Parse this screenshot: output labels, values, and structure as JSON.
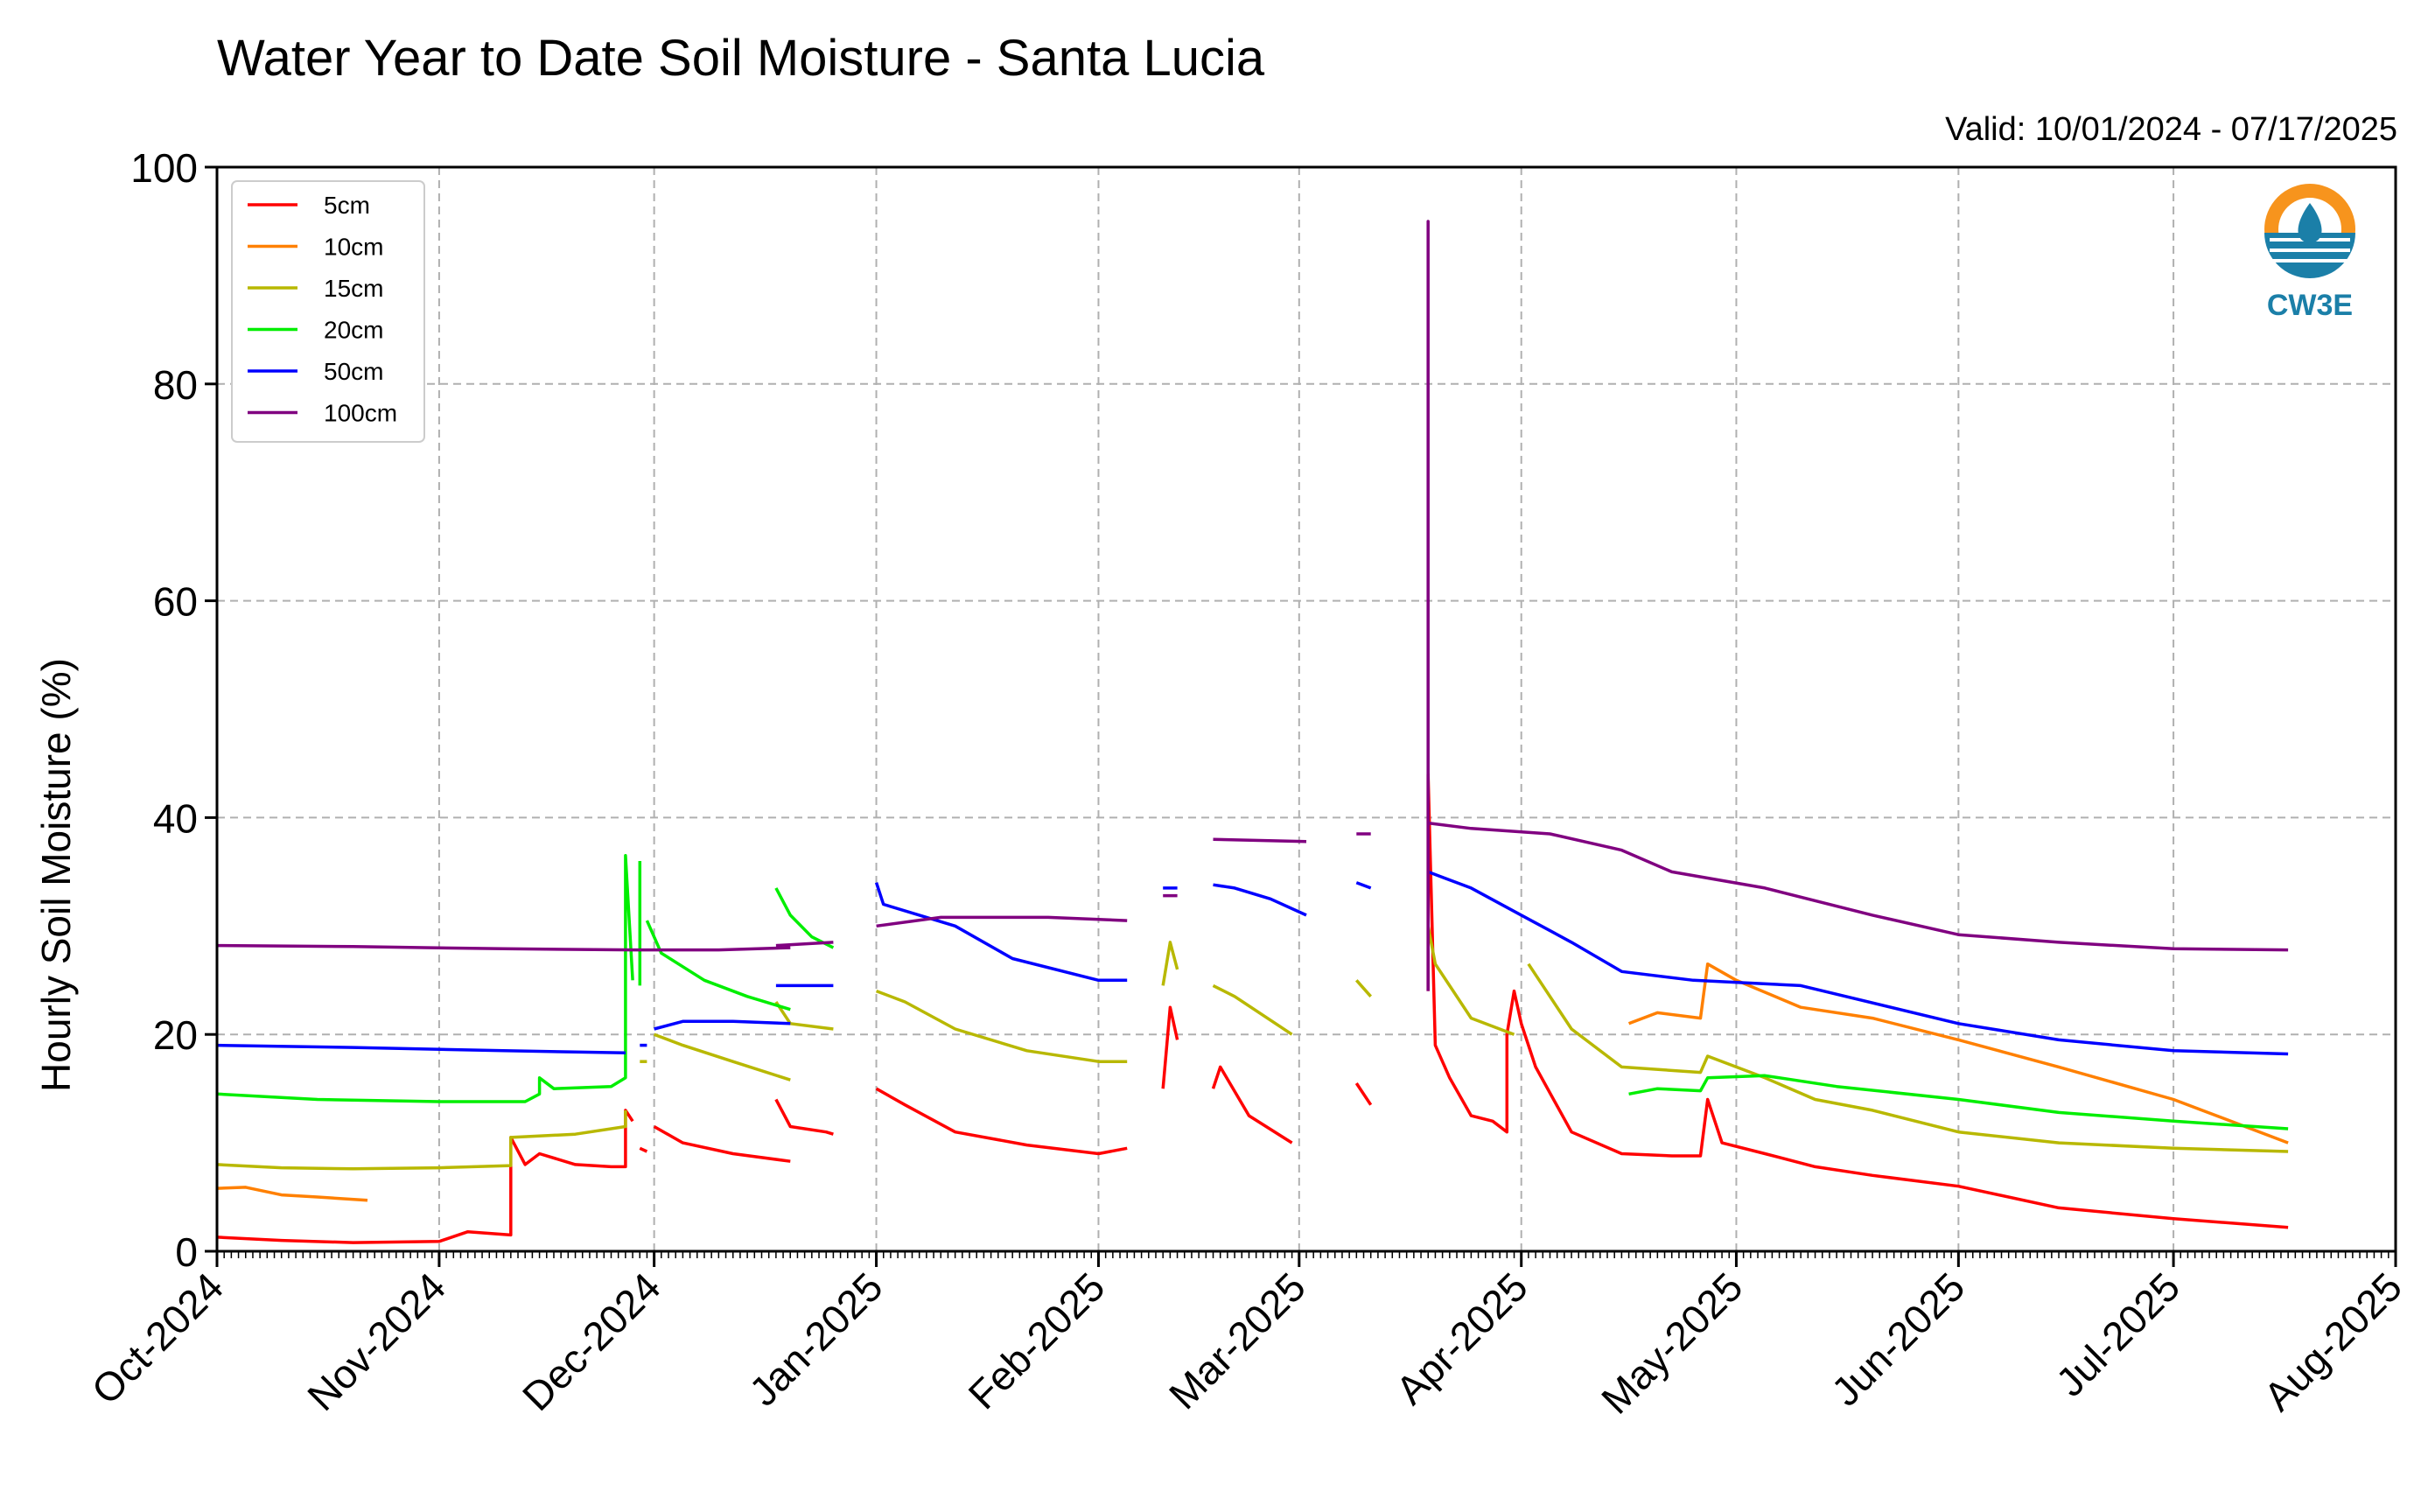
{
  "chart_data": {
    "type": "line",
    "title": "Water Year to Date Soil Moisture - Santa Lucia",
    "subtitle": "Valid: 10/01/2024 - 07/17/2025",
    "ylabel": "Hourly Soil Moisture (%)",
    "xlabel": "",
    "ylim": [
      0,
      100
    ],
    "xlim": [
      "2024-10-01",
      "2025-08-01"
    ],
    "yticks": [
      0,
      20,
      40,
      60,
      80,
      100
    ],
    "xticks": [
      "2024-10-01",
      "2024-11-01",
      "2024-12-01",
      "2025-01-01",
      "2025-02-01",
      "2025-03-01",
      "2025-04-01",
      "2025-05-01",
      "2025-06-01",
      "2025-07-01",
      "2025-08-01"
    ],
    "xtick_labels": [
      "Oct-2024",
      "Nov-2024",
      "Dec-2024",
      "Jan-2025",
      "Feb-2025",
      "Mar-2025",
      "Apr-2025",
      "May-2025",
      "Jun-2025",
      "Jul-2025",
      "Aug-2025"
    ],
    "grid": true,
    "legend_position": "top-left",
    "logo": {
      "text": "CW3E",
      "colors": [
        "#f7941d",
        "#1b7fa8"
      ]
    },
    "series": [
      {
        "name": "5cm",
        "color": "#ff0000",
        "segments": [
          [
            [
              "2024-10-01",
              1.3
            ],
            [
              "2024-10-10",
              1.0
            ],
            [
              "2024-10-20",
              0.8
            ],
            [
              "2024-11-01",
              0.9
            ],
            [
              "2024-11-05",
              1.8
            ],
            [
              "2024-11-11",
              1.5
            ],
            [
              "2024-11-11",
              10.5
            ],
            [
              "2024-11-13",
              8.0
            ],
            [
              "2024-11-15",
              9.0
            ],
            [
              "2024-11-20",
              8.0
            ],
            [
              "2024-11-25",
              7.8
            ],
            [
              "2024-11-27",
              7.8
            ],
            [
              "2024-11-27",
              13.0
            ],
            [
              "2024-11-28",
              12.0
            ]
          ],
          [
            [
              "2024-11-29",
              9.5
            ],
            [
              "2024-11-30",
              9.2
            ]
          ],
          [
            [
              "2024-12-01",
              11.5
            ],
            [
              "2024-12-05",
              10.0
            ],
            [
              "2024-12-12",
              9.0
            ],
            [
              "2024-12-20",
              8.3
            ]
          ],
          [
            [
              "2024-12-18",
              14.0
            ],
            [
              "2024-12-20",
              11.5
            ],
            [
              "2024-12-25",
              11.0
            ],
            [
              "2024-12-26",
              10.8
            ]
          ],
          [
            [
              "2025-01-01",
              15.0
            ],
            [
              "2025-01-05",
              13.5
            ],
            [
              "2025-01-12",
              11.0
            ],
            [
              "2025-01-22",
              9.8
            ],
            [
              "2025-02-01",
              9.0
            ],
            [
              "2025-02-05",
              9.5
            ]
          ],
          [
            [
              "2025-02-10",
              15.0
            ],
            [
              "2025-02-11",
              22.5
            ],
            [
              "2025-02-12",
              19.5
            ]
          ],
          [
            [
              "2025-02-17",
              15.0
            ],
            [
              "2025-02-18",
              17.0
            ],
            [
              "2025-02-22",
              12.5
            ],
            [
              "2025-02-28",
              10.0
            ]
          ],
          [
            [
              "2025-03-09",
              15.5
            ],
            [
              "2025-03-11",
              13.5
            ]
          ],
          [
            [
              "2025-03-19",
              24.0
            ],
            [
              "2025-03-19",
              44.0
            ],
            [
              "2025-03-20",
              19.0
            ],
            [
              "2025-03-22",
              16.0
            ],
            [
              "2025-03-25",
              12.5
            ],
            [
              "2025-03-28",
              12.0
            ],
            [
              "2025-03-30",
              11.0
            ],
            [
              "2025-03-30",
              20.0
            ],
            [
              "2025-03-31",
              24.0
            ],
            [
              "2025-04-01",
              21.0
            ],
            [
              "2025-04-03",
              17.0
            ],
            [
              "2025-04-08",
              11.0
            ],
            [
              "2025-04-15",
              9.0
            ],
            [
              "2025-04-22",
              8.8
            ],
            [
              "2025-04-26",
              8.8
            ],
            [
              "2025-04-27",
              14.0
            ],
            [
              "2025-04-29",
              10.0
            ],
            [
              "2025-05-05",
              9.0
            ],
            [
              "2025-05-12",
              7.8
            ],
            [
              "2025-05-20",
              7.0
            ],
            [
              "2025-06-01",
              6.0
            ],
            [
              "2025-06-15",
              4.0
            ],
            [
              "2025-07-01",
              3.0
            ],
            [
              "2025-07-17",
              2.2
            ]
          ]
        ]
      },
      {
        "name": "10cm",
        "color": "#ff8000",
        "segments": [
          [
            [
              "2024-10-01",
              5.8
            ],
            [
              "2024-10-05",
              5.9
            ],
            [
              "2024-10-10",
              5.2
            ],
            [
              "2024-10-15",
              5.0
            ],
            [
              "2024-10-22",
              4.7
            ]
          ],
          [
            [
              "2025-04-16",
              21.0
            ],
            [
              "2025-04-20",
              22.0
            ],
            [
              "2025-04-26",
              21.5
            ],
            [
              "2025-04-27",
              26.5
            ],
            [
              "2025-05-01",
              25.0
            ],
            [
              "2025-05-10",
              22.5
            ],
            [
              "2025-05-20",
              21.5
            ],
            [
              "2025-06-01",
              19.5
            ],
            [
              "2025-06-15",
              17.0
            ],
            [
              "2025-07-01",
              14.0
            ],
            [
              "2025-07-17",
              10.0
            ]
          ]
        ]
      },
      {
        "name": "15cm",
        "color": "#b8b800",
        "segments": [
          [
            [
              "2024-10-01",
              8.0
            ],
            [
              "2024-10-10",
              7.7
            ],
            [
              "2024-10-20",
              7.6
            ],
            [
              "2024-11-01",
              7.7
            ],
            [
              "2024-11-11",
              7.9
            ],
            [
              "2024-11-11",
              10.5
            ],
            [
              "2024-11-20",
              10.8
            ],
            [
              "2024-11-27",
              11.5
            ],
            [
              "2024-11-27",
              13.0
            ]
          ],
          [
            [
              "2024-11-29",
              17.5
            ],
            [
              "2024-11-30",
              17.5
            ]
          ],
          [
            [
              "2024-12-01",
              20.0
            ],
            [
              "2024-12-05",
              19.0
            ],
            [
              "2024-12-12",
              17.5
            ],
            [
              "2024-12-20",
              15.8
            ]
          ],
          [
            [
              "2024-12-18",
              23.0
            ],
            [
              "2024-12-20",
              21.0
            ],
            [
              "2024-12-26",
              20.5
            ]
          ],
          [
            [
              "2025-01-01",
              24.0
            ],
            [
              "2025-01-05",
              23.0
            ],
            [
              "2025-01-12",
              20.5
            ],
            [
              "2025-01-22",
              18.5
            ],
            [
              "2025-02-01",
              17.5
            ],
            [
              "2025-02-05",
              17.5
            ]
          ],
          [
            [
              "2025-02-10",
              24.5
            ],
            [
              "2025-02-11",
              28.5
            ],
            [
              "2025-02-12",
              26.0
            ]
          ],
          [
            [
              "2025-02-17",
              24.5
            ],
            [
              "2025-02-20",
              23.5
            ],
            [
              "2025-02-28",
              20.0
            ]
          ],
          [
            [
              "2025-03-09",
              25.0
            ],
            [
              "2025-03-11",
              23.5
            ]
          ],
          [
            [
              "2025-03-19",
              30.0
            ],
            [
              "2025-03-20",
              26.5
            ],
            [
              "2025-03-25",
              21.5
            ],
            [
              "2025-03-31",
              20.0
            ]
          ],
          [
            [
              "2025-04-02",
              26.5
            ],
            [
              "2025-04-08",
              20.5
            ],
            [
              "2025-04-15",
              17.0
            ],
            [
              "2025-04-26",
              16.5
            ],
            [
              "2025-04-27",
              18.0
            ],
            [
              "2025-05-05",
              16.0
            ],
            [
              "2025-05-12",
              14.0
            ],
            [
              "2025-05-20",
              13.0
            ],
            [
              "2025-06-01",
              11.0
            ],
            [
              "2025-06-15",
              10.0
            ],
            [
              "2025-07-01",
              9.5
            ],
            [
              "2025-07-17",
              9.2
            ]
          ]
        ]
      },
      {
        "name": "20cm",
        "color": "#00ee00",
        "segments": [
          [
            [
              "2024-10-01",
              14.5
            ],
            [
              "2024-10-15",
              14.0
            ],
            [
              "2024-11-01",
              13.8
            ],
            [
              "2024-11-13",
              13.8
            ],
            [
              "2024-11-15",
              14.5
            ],
            [
              "2024-11-15",
              16.0
            ],
            [
              "2024-11-17",
              15.0
            ],
            [
              "2024-11-25",
              15.2
            ],
            [
              "2024-11-27",
              16.0
            ],
            [
              "2024-11-27",
              36.5
            ],
            [
              "2024-11-28",
              25.0
            ]
          ],
          [
            [
              "2024-11-29",
              36.0
            ],
            [
              "2024-11-29",
              24.5
            ]
          ],
          [
            [
              "2024-11-30",
              30.5
            ],
            [
              "2024-12-02",
              27.5
            ],
            [
              "2024-12-08",
              25.0
            ],
            [
              "2024-12-14",
              23.5
            ],
            [
              "2024-12-20",
              22.3
            ]
          ],
          [
            [
              "2024-12-18",
              33.5
            ],
            [
              "2024-12-20",
              31.0
            ],
            [
              "2024-12-23",
              29.0
            ],
            [
              "2024-12-26",
              28.0
            ]
          ],
          [
            [
              "2025-04-16",
              14.5
            ],
            [
              "2025-04-20",
              15.0
            ],
            [
              "2025-04-26",
              14.8
            ],
            [
              "2025-04-27",
              16.0
            ],
            [
              "2025-05-05",
              16.2
            ],
            [
              "2025-05-15",
              15.2
            ],
            [
              "2025-06-01",
              14.0
            ],
            [
              "2025-06-15",
              12.8
            ],
            [
              "2025-07-01",
              12.0
            ],
            [
              "2025-07-17",
              11.3
            ]
          ]
        ]
      },
      {
        "name": "50cm",
        "color": "#0000ff",
        "segments": [
          [
            [
              "2024-10-01",
              19.0
            ],
            [
              "2024-10-20",
              18.8
            ],
            [
              "2024-11-10",
              18.5
            ],
            [
              "2024-11-27",
              18.3
            ]
          ],
          [
            [
              "2024-11-29",
              19.0
            ],
            [
              "2024-11-30",
              19.0
            ]
          ],
          [
            [
              "2024-12-01",
              20.5
            ],
            [
              "2024-12-05",
              21.2
            ],
            [
              "2024-12-12",
              21.2
            ],
            [
              "2024-12-20",
              21.0
            ]
          ],
          [
            [
              "2024-12-18",
              24.5
            ],
            [
              "2024-12-26",
              24.5
            ]
          ],
          [
            [
              "2025-01-01",
              34.0
            ],
            [
              "2025-01-02",
              32.0
            ],
            [
              "2025-01-12",
              30.0
            ],
            [
              "2025-01-20",
              27.0
            ],
            [
              "2025-02-01",
              25.0
            ],
            [
              "2025-02-05",
              25.0
            ]
          ],
          [
            [
              "2025-02-10",
              33.5
            ],
            [
              "2025-02-12",
              33.5
            ]
          ],
          [
            [
              "2025-02-17",
              33.8
            ],
            [
              "2025-02-20",
              33.5
            ],
            [
              "2025-02-25",
              32.5
            ],
            [
              "2025-03-02",
              31.0
            ]
          ],
          [
            [
              "2025-03-09",
              34.0
            ],
            [
              "2025-03-11",
              33.5
            ]
          ],
          [
            [
              "2025-03-19",
              35.0
            ],
            [
              "2025-03-25",
              33.5
            ],
            [
              "2025-04-01",
              31.0
            ],
            [
              "2025-04-08",
              28.5
            ],
            [
              "2025-04-15",
              25.8
            ],
            [
              "2025-04-25",
              25.0
            ],
            [
              "2025-05-10",
              24.5
            ],
            [
              "2025-06-01",
              21.0
            ],
            [
              "2025-06-15",
              19.5
            ],
            [
              "2025-07-01",
              18.5
            ],
            [
              "2025-07-17",
              18.2
            ]
          ]
        ]
      },
      {
        "name": "100cm",
        "color": "#800080",
        "segments": [
          [
            [
              "2024-10-01",
              28.2
            ],
            [
              "2024-10-20",
              28.1
            ],
            [
              "2024-11-10",
              27.9
            ],
            [
              "2024-11-28",
              27.8
            ],
            [
              "2024-12-10",
              27.8
            ],
            [
              "2024-12-20",
              28.0
            ]
          ],
          [
            [
              "2024-12-18",
              28.2
            ],
            [
              "2024-12-26",
              28.5
            ]
          ],
          [
            [
              "2025-01-01",
              30.0
            ],
            [
              "2025-01-10",
              30.8
            ],
            [
              "2025-01-25",
              30.8
            ],
            [
              "2025-02-05",
              30.5
            ]
          ],
          [
            [
              "2025-02-10",
              32.8
            ],
            [
              "2025-02-12",
              32.8
            ]
          ],
          [
            [
              "2025-02-17",
              38.0
            ],
            [
              "2025-03-02",
              37.8
            ]
          ],
          [
            [
              "2025-03-09",
              38.5
            ],
            [
              "2025-03-11",
              38.5
            ]
          ],
          [
            [
              "2025-03-19",
              24.0
            ],
            [
              "2025-03-19",
              95.0
            ],
            [
              "2025-03-19",
              39.5
            ],
            [
              "2025-03-25",
              39.0
            ],
            [
              "2025-04-05",
              38.5
            ],
            [
              "2025-04-15",
              37.0
            ],
            [
              "2025-04-22",
              35.0
            ],
            [
              "2025-05-05",
              33.5
            ],
            [
              "2025-05-20",
              31.0
            ],
            [
              "2025-06-01",
              29.2
            ],
            [
              "2025-06-15",
              28.5
            ],
            [
              "2025-07-01",
              27.9
            ],
            [
              "2025-07-17",
              27.8
            ]
          ]
        ]
      }
    ]
  }
}
